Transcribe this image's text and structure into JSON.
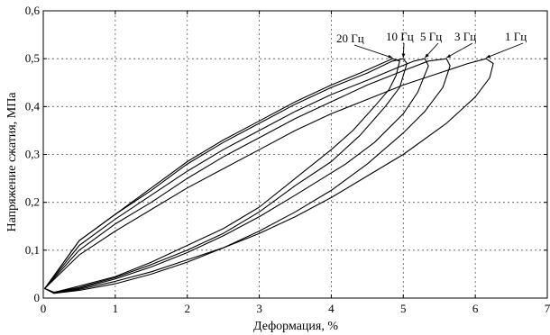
{
  "chart_data": {
    "type": "line",
    "title": "",
    "xlabel": "Деформация, %",
    "ylabel": "Напряжение сжатия, МПа",
    "xlim": [
      0,
      7
    ],
    "ylim": [
      0,
      0.6
    ],
    "xticks": [
      "0",
      "1",
      "2",
      "3",
      "4",
      "5",
      "6",
      "7"
    ],
    "yticks": [
      "0",
      "0,1",
      "0,2",
      "0,3",
      "0,4",
      "0,5",
      "0,6"
    ],
    "grid": true,
    "series": [
      {
        "name": "20 Гц",
        "x": [
          0.02,
          0.5,
          1.0,
          1.5,
          2.0,
          2.5,
          3.0,
          3.5,
          4.0,
          4.4,
          4.7,
          4.85,
          4.95,
          4.9,
          4.8,
          4.6,
          4.3,
          4.0,
          3.5,
          3.0,
          2.5,
          2.0,
          1.5,
          1.0,
          0.5,
          0.15,
          0.02
        ],
        "upper": [
          0.02,
          0.12,
          0.175,
          0.23,
          0.285,
          0.33,
          0.37,
          0.41,
          0.445,
          0.47,
          0.49,
          0.5,
          0.495,
          0.465,
          0.435,
          0.4,
          0.35,
          0.31,
          0.25,
          0.19,
          0.145,
          0.11,
          0.075,
          0.045,
          0.025,
          0.012,
          0.02
        ]
      },
      {
        "name": "10 Гц",
        "x": [
          0.02,
          0.5,
          1.0,
          1.5,
          2.0,
          2.5,
          3.0,
          3.5,
          4.0,
          4.5,
          4.85,
          5.0,
          5.05,
          4.95,
          4.75,
          4.4,
          4.0,
          3.5,
          3.0,
          2.5,
          2.0,
          1.5,
          1.0,
          0.5,
          0.15,
          0.02
        ],
        "upper": [
          0.02,
          0.12,
          0.175,
          0.225,
          0.28,
          0.325,
          0.365,
          0.405,
          0.44,
          0.47,
          0.495,
          0.5,
          0.49,
          0.44,
          0.4,
          0.34,
          0.285,
          0.235,
          0.18,
          0.135,
          0.1,
          0.07,
          0.043,
          0.022,
          0.012,
          0.02
        ]
      },
      {
        "name": "5 Гц",
        "x": [
          0.02,
          0.5,
          1.0,
          1.5,
          2.0,
          2.5,
          3.0,
          3.5,
          4.0,
          4.5,
          4.9,
          5.15,
          5.3,
          5.35,
          5.2,
          5.0,
          4.6,
          4.2,
          3.5,
          3.0,
          2.5,
          2.0,
          1.5,
          1.0,
          0.5,
          0.15,
          0.02
        ],
        "upper": [
          0.02,
          0.11,
          0.165,
          0.215,
          0.265,
          0.31,
          0.35,
          0.39,
          0.425,
          0.455,
          0.48,
          0.495,
          0.5,
          0.485,
          0.43,
          0.385,
          0.325,
          0.28,
          0.215,
          0.17,
          0.13,
          0.095,
          0.065,
          0.04,
          0.02,
          0.011,
          0.02
        ]
      },
      {
        "name": "3 Гц",
        "x": [
          0.02,
          0.5,
          1.0,
          1.5,
          2.0,
          2.5,
          3.0,
          3.5,
          4.0,
          4.5,
          5.0,
          5.35,
          5.6,
          5.65,
          5.55,
          5.3,
          5.0,
          4.5,
          4.0,
          3.5,
          3.0,
          2.5,
          2.0,
          1.5,
          1.0,
          0.5,
          0.15,
          0.02
        ],
        "upper": [
          0.02,
          0.1,
          0.155,
          0.2,
          0.25,
          0.295,
          0.335,
          0.375,
          0.41,
          0.445,
          0.475,
          0.495,
          0.5,
          0.485,
          0.44,
          0.39,
          0.345,
          0.28,
          0.225,
          0.18,
          0.14,
          0.105,
          0.075,
          0.05,
          0.03,
          0.016,
          0.01,
          0.02
        ]
      },
      {
        "name": "1 Гц",
        "x": [
          0.02,
          0.5,
          1.0,
          1.5,
          2.0,
          2.5,
          3.0,
          3.5,
          4.0,
          4.5,
          5.0,
          5.5,
          5.9,
          6.15,
          6.25,
          6.2,
          6.0,
          5.6,
          5.0,
          4.5,
          4.0,
          3.5,
          3.0,
          2.5,
          2.0,
          1.5,
          1.0,
          0.5,
          0.15,
          0.02
        ],
        "upper": [
          0.02,
          0.09,
          0.14,
          0.185,
          0.23,
          0.27,
          0.31,
          0.35,
          0.385,
          0.415,
          0.445,
          0.47,
          0.49,
          0.5,
          0.49,
          0.46,
          0.42,
          0.365,
          0.3,
          0.255,
          0.21,
          0.17,
          0.135,
          0.105,
          0.08,
          0.055,
          0.035,
          0.018,
          0.01,
          0.02
        ]
      }
    ],
    "annotations": [
      {
        "text": "20 Гц",
        "series": "20 Гц"
      },
      {
        "text": "10 Гц",
        "series": "10 Гц"
      },
      {
        "text": "5 Гц",
        "series": "5 Гц"
      },
      {
        "text": "3 Гц",
        "series": "3 Гц"
      },
      {
        "text": "1 Гц",
        "series": "1 Гц"
      }
    ],
    "colors": {
      "line": "#000000",
      "grid": "#555555",
      "background": "#ffffff"
    }
  }
}
